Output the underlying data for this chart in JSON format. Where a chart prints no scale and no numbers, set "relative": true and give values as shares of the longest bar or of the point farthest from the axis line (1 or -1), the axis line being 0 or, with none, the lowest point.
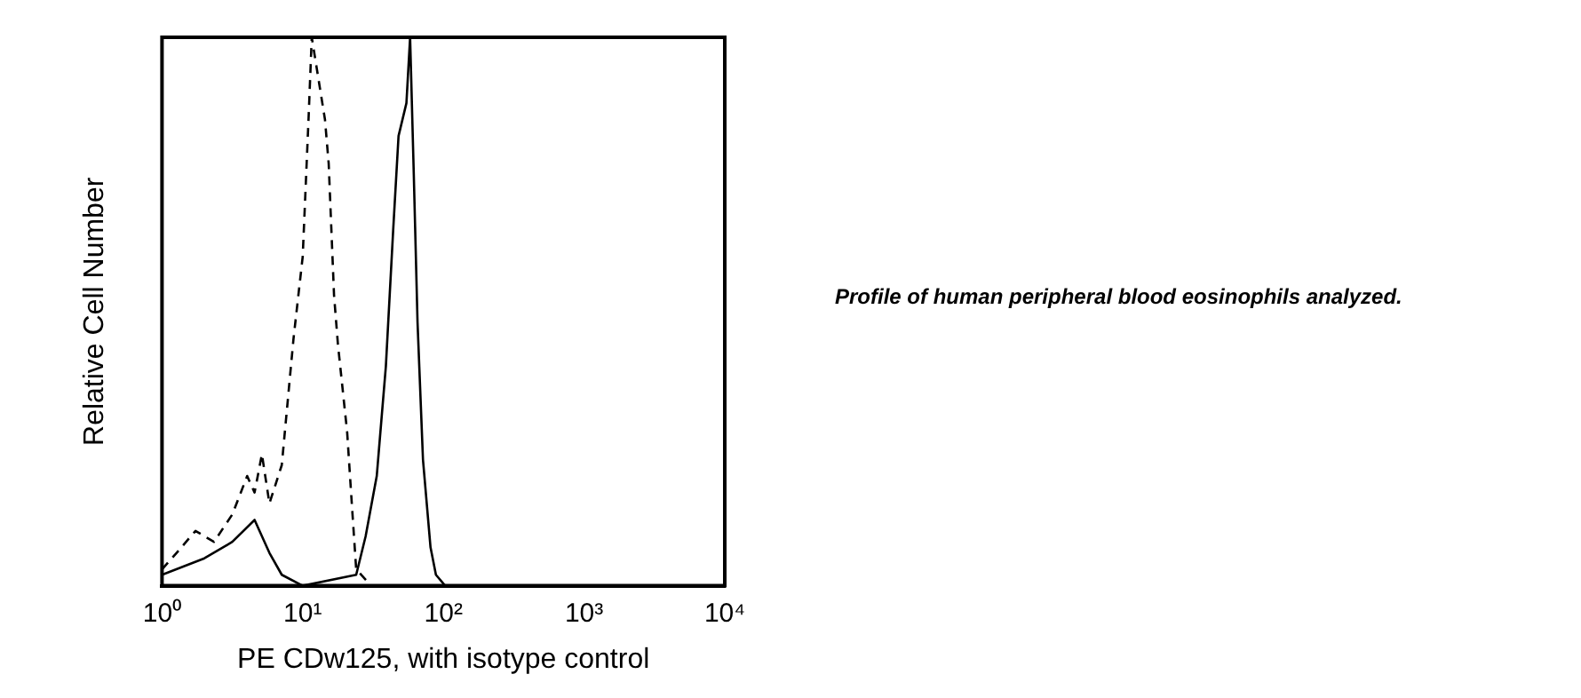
{
  "chart_data": {
    "type": "line",
    "relative": true,
    "xlabel": "PE CDw125, with isotype control",
    "ylabel": "Relative Cell Number",
    "log": "x",
    "xlim": [
      1,
      10000
    ],
    "xticks": [
      {
        "value": 1,
        "label": "10⁰"
      },
      {
        "value": 10,
        "label": "10¹"
      },
      {
        "value": 100,
        "label": "10²"
      },
      {
        "value": 1000,
        "label": "10³"
      },
      {
        "value": 10000,
        "label": "10⁴"
      }
    ],
    "grid": false,
    "legend": false,
    "marker": "none",
    "series": [
      {
        "color": "#000000",
        "line_style": "dashed",
        "x": [
          1,
          1.27,
          1.73,
          2.34,
          3.16,
          4.03,
          4.55,
          5.13,
          5.8,
          7.1,
          8.6,
          10,
          11,
          11.6,
          14.4,
          15.3,
          16.7,
          17.8,
          20.7,
          22.6,
          24,
          30.7,
          10000
        ],
        "values": [
          0.03,
          0.06,
          0.1,
          0.08,
          0.13,
          0.2,
          0.17,
          0.24,
          0.15,
          0.22,
          0.45,
          0.6,
          0.85,
          1,
          0.85,
          0.77,
          0.53,
          0.44,
          0.28,
          0.13,
          0.03,
          0,
          0
        ]
      },
      {
        "color": "#000000",
        "line_style": "solid",
        "x": [
          1,
          2,
          3.16,
          4.55,
          5.8,
          7.1,
          10,
          24,
          28,
          33.6,
          39,
          44,
          48,
          54.6,
          58,
          61.6,
          65.5,
          71.6,
          81,
          88.5,
          103,
          10000
        ],
        "values": [
          0.02,
          0.05,
          0.08,
          0.12,
          0.06,
          0.02,
          0,
          0.02,
          0.09,
          0.2,
          0.4,
          0.65,
          0.82,
          0.88,
          1,
          0.75,
          0.48,
          0.23,
          0.07,
          0.02,
          0,
          0
        ]
      }
    ],
    "annotations": [
      "Profile of human peripheral blood eosinophils analyzed."
    ]
  }
}
